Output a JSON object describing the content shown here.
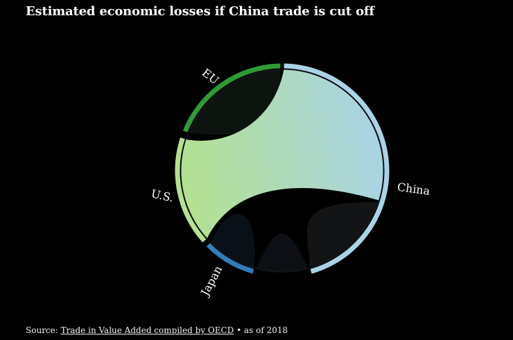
{
  "header": {
    "title": "Estimated economic losses if China trade is cut off"
  },
  "footer": {
    "source_label": "Source:",
    "source_link": "Trade in Value Added compiled by OECD",
    "bullet": "•",
    "as_of": "as of 2018"
  },
  "chart_data": {
    "type": "chord",
    "title": "Estimated economic losses if China trade is cut off",
    "groups": [
      {
        "name": "China",
        "color": "#a9d3e6",
        "share": 0.475
      },
      {
        "name": "Japan",
        "color": "#2f7dbb",
        "share": 0.085
      },
      {
        "name": "U.S.",
        "color": "#b3e191",
        "share": 0.2
      },
      {
        "name": "EU",
        "color": "#2e9b36",
        "share": 0.17
      }
    ],
    "flows": [
      {
        "from": "China",
        "to": "U.S.",
        "color_from": "#a9d3e6",
        "color_to": "#b3e191"
      },
      {
        "from": "EU",
        "to": "EU",
        "fill": "#0d1410"
      },
      {
        "from": "China",
        "to": "China",
        "fill": "#121416"
      },
      {
        "from": "Japan",
        "to": "Japan",
        "fill": "#0a1018"
      },
      {
        "from": "China",
        "to": "Japan",
        "fill": "#0c1014"
      }
    ],
    "source": "Trade in Value Added compiled by OECD",
    "as_of": "as of 2018"
  }
}
